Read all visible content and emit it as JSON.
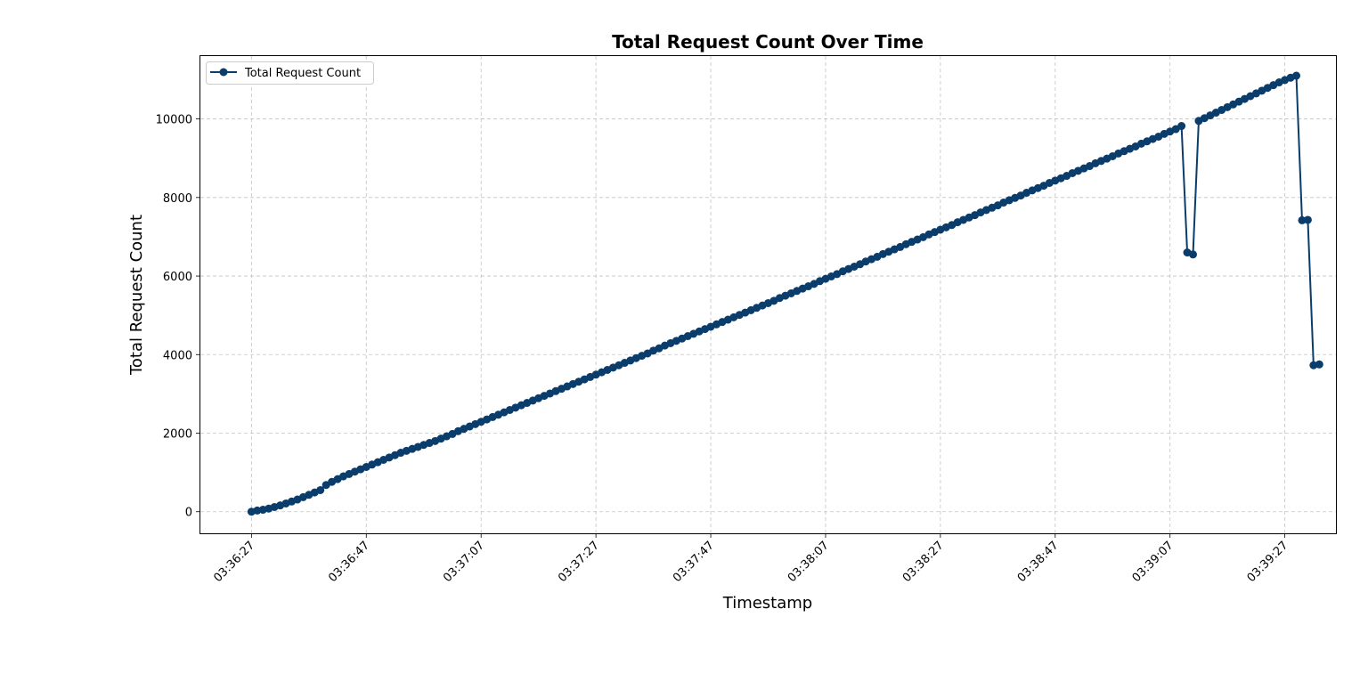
{
  "chart_data": {
    "type": "line",
    "title": "Total Request Count Over Time",
    "xlabel": "Timestamp",
    "ylabel": "Total Request Count",
    "x_tick_labels": [
      "03:36:27",
      "03:36:47",
      "03:37:07",
      "03:37:27",
      "03:37:47",
      "03:38:07",
      "03:38:27",
      "03:38:47",
      "03:39:07",
      "03:39:27"
    ],
    "x_tick_values": [
      0,
      20,
      40,
      60,
      80,
      100,
      120,
      140,
      160,
      180
    ],
    "y_ticks": [
      0,
      2000,
      4000,
      6000,
      8000,
      10000
    ],
    "xlim": [
      -8.9,
      188.9
    ],
    "ylim": [
      -550,
      11600
    ],
    "grid": true,
    "legend_position": "top-left",
    "color": "#0a3d6b",
    "series": [
      {
        "name": "Total Request Count",
        "x_start_label": "03:36:27",
        "x_step_seconds": 1,
        "values": [
          0,
          30,
          50,
          80,
          120,
          160,
          210,
          260,
          310,
          370,
          430,
          490,
          550,
          680,
          760,
          830,
          900,
          960,
          1020,
          1080,
          1140,
          1200,
          1260,
          1320,
          1380,
          1440,
          1500,
          1550,
          1600,
          1650,
          1700,
          1750,
          1800,
          1860,
          1920,
          1980,
          2050,
          2110,
          2170,
          2230,
          2290,
          2350,
          2410,
          2470,
          2530,
          2590,
          2650,
          2710,
          2770,
          2830,
          2890,
          2950,
          3010,
          3070,
          3130,
          3190,
          3250,
          3310,
          3370,
          3430,
          3490,
          3550,
          3610,
          3670,
          3730,
          3790,
          3850,
          3910,
          3970,
          4030,
          4100,
          4160,
          4230,
          4290,
          4350,
          4410,
          4470,
          4530,
          4590,
          4650,
          4710,
          4770,
          4830,
          4890,
          4950,
          5010,
          5070,
          5130,
          5190,
          5250,
          5310,
          5370,
          5440,
          5500,
          5560,
          5620,
          5680,
          5740,
          5800,
          5870,
          5930,
          5990,
          6050,
          6120,
          6180,
          6240,
          6300,
          6370,
          6430,
          6490,
          6560,
          6620,
          6680,
          6740,
          6810,
          6870,
          6930,
          6990,
          7060,
          7120,
          7180,
          7240,
          7300,
          7370,
          7430,
          7490,
          7550,
          7620,
          7680,
          7740,
          7800,
          7870,
          7930,
          7990,
          8050,
          8120,
          8180,
          8240,
          8300,
          8370,
          8430,
          8490,
          8550,
          8620,
          8680,
          8740,
          8800,
          8870,
          8930,
          8990,
          9050,
          9120,
          9180,
          9240,
          9300,
          9370,
          9430,
          9490,
          9550,
          9620,
          9680,
          9740,
          9820,
          6600,
          6550,
          9950,
          10020,
          10090,
          10160,
          10230,
          10300,
          10370,
          10440,
          10510,
          10580,
          10650,
          10720,
          10790,
          10860,
          10930,
          10990,
          11050,
          11100,
          7420,
          7430,
          3730,
          3750
        ]
      }
    ]
  }
}
